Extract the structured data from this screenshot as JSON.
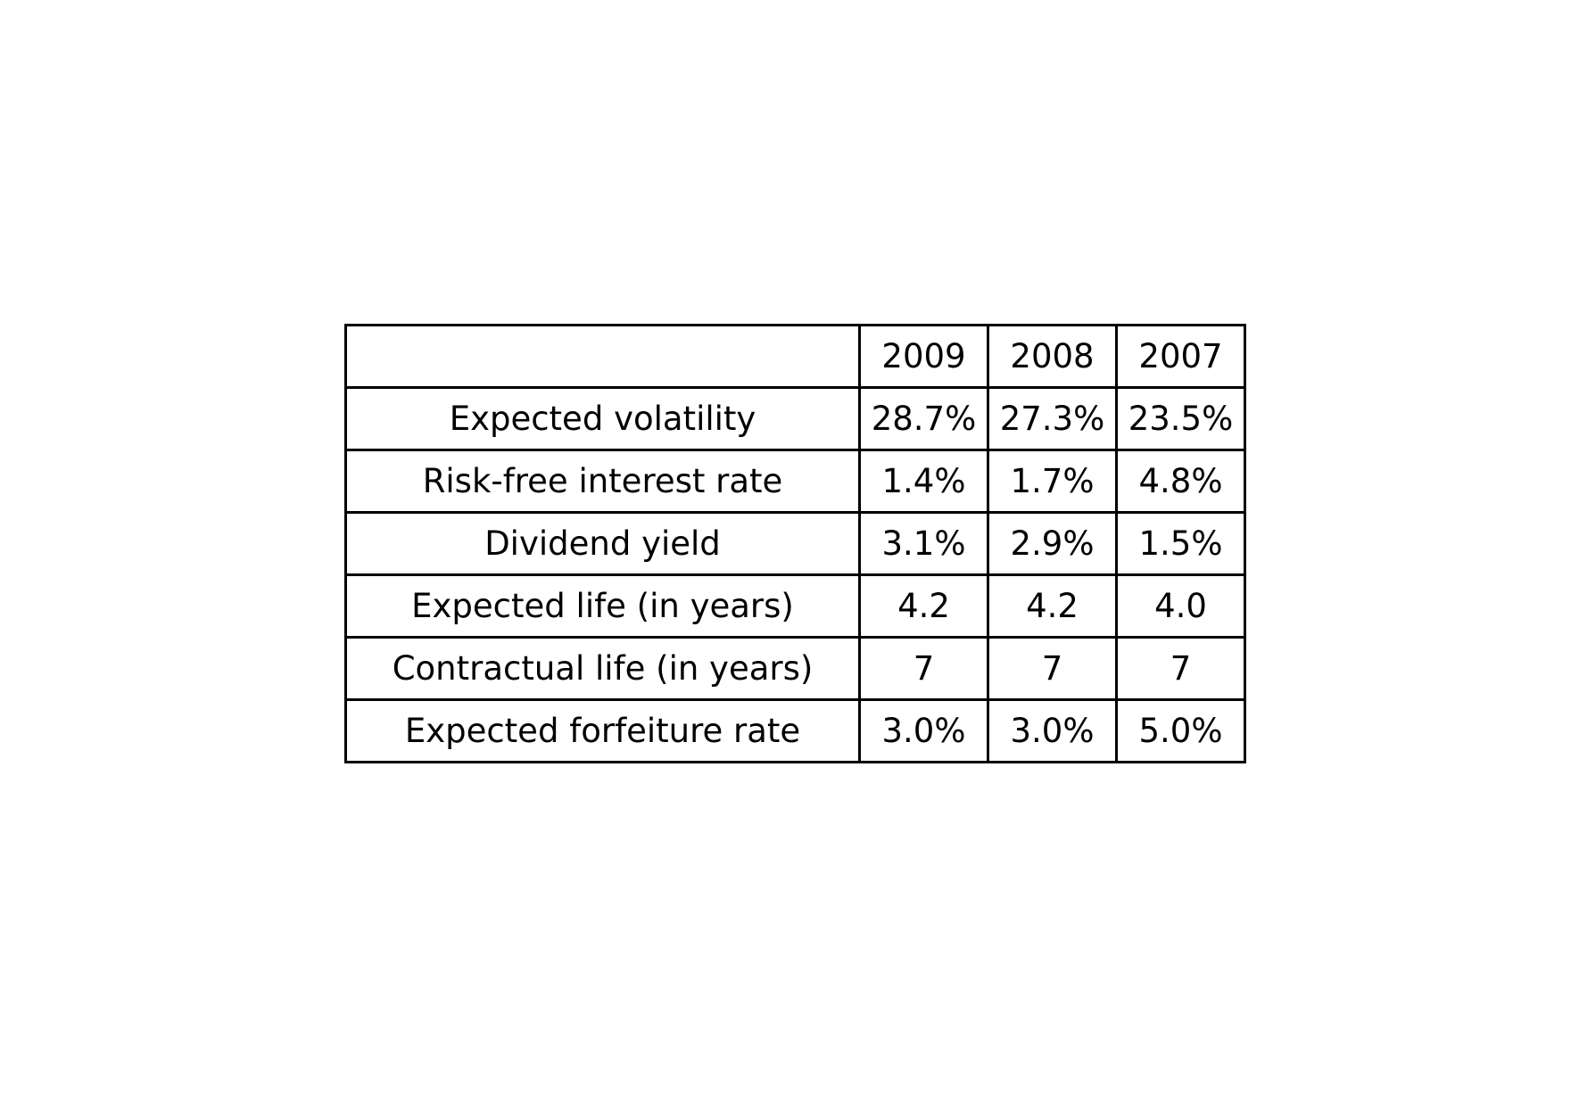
{
  "chart_data": {
    "type": "table",
    "columns": [
      "",
      "2009",
      "2008",
      "2007"
    ],
    "rows": [
      [
        "Expected volatility",
        "28.7%",
        "27.3%",
        "23.5%"
      ],
      [
        "Risk-free interest rate",
        "1.4%",
        "1.7%",
        "4.8%"
      ],
      [
        "Dividend yield",
        "3.1%",
        "2.9%",
        "1.5%"
      ],
      [
        "Expected life (in years)",
        "4.2",
        "4.2",
        "4.0"
      ],
      [
        "Contractual life (in years)",
        "7",
        "7",
        "7"
      ],
      [
        "Expected forfeiture rate",
        "3.0%",
        "3.0%",
        "5.0%"
      ]
    ],
    "colors": {
      "border": "#000000",
      "text": "#000000",
      "background": "#ffffff"
    }
  }
}
